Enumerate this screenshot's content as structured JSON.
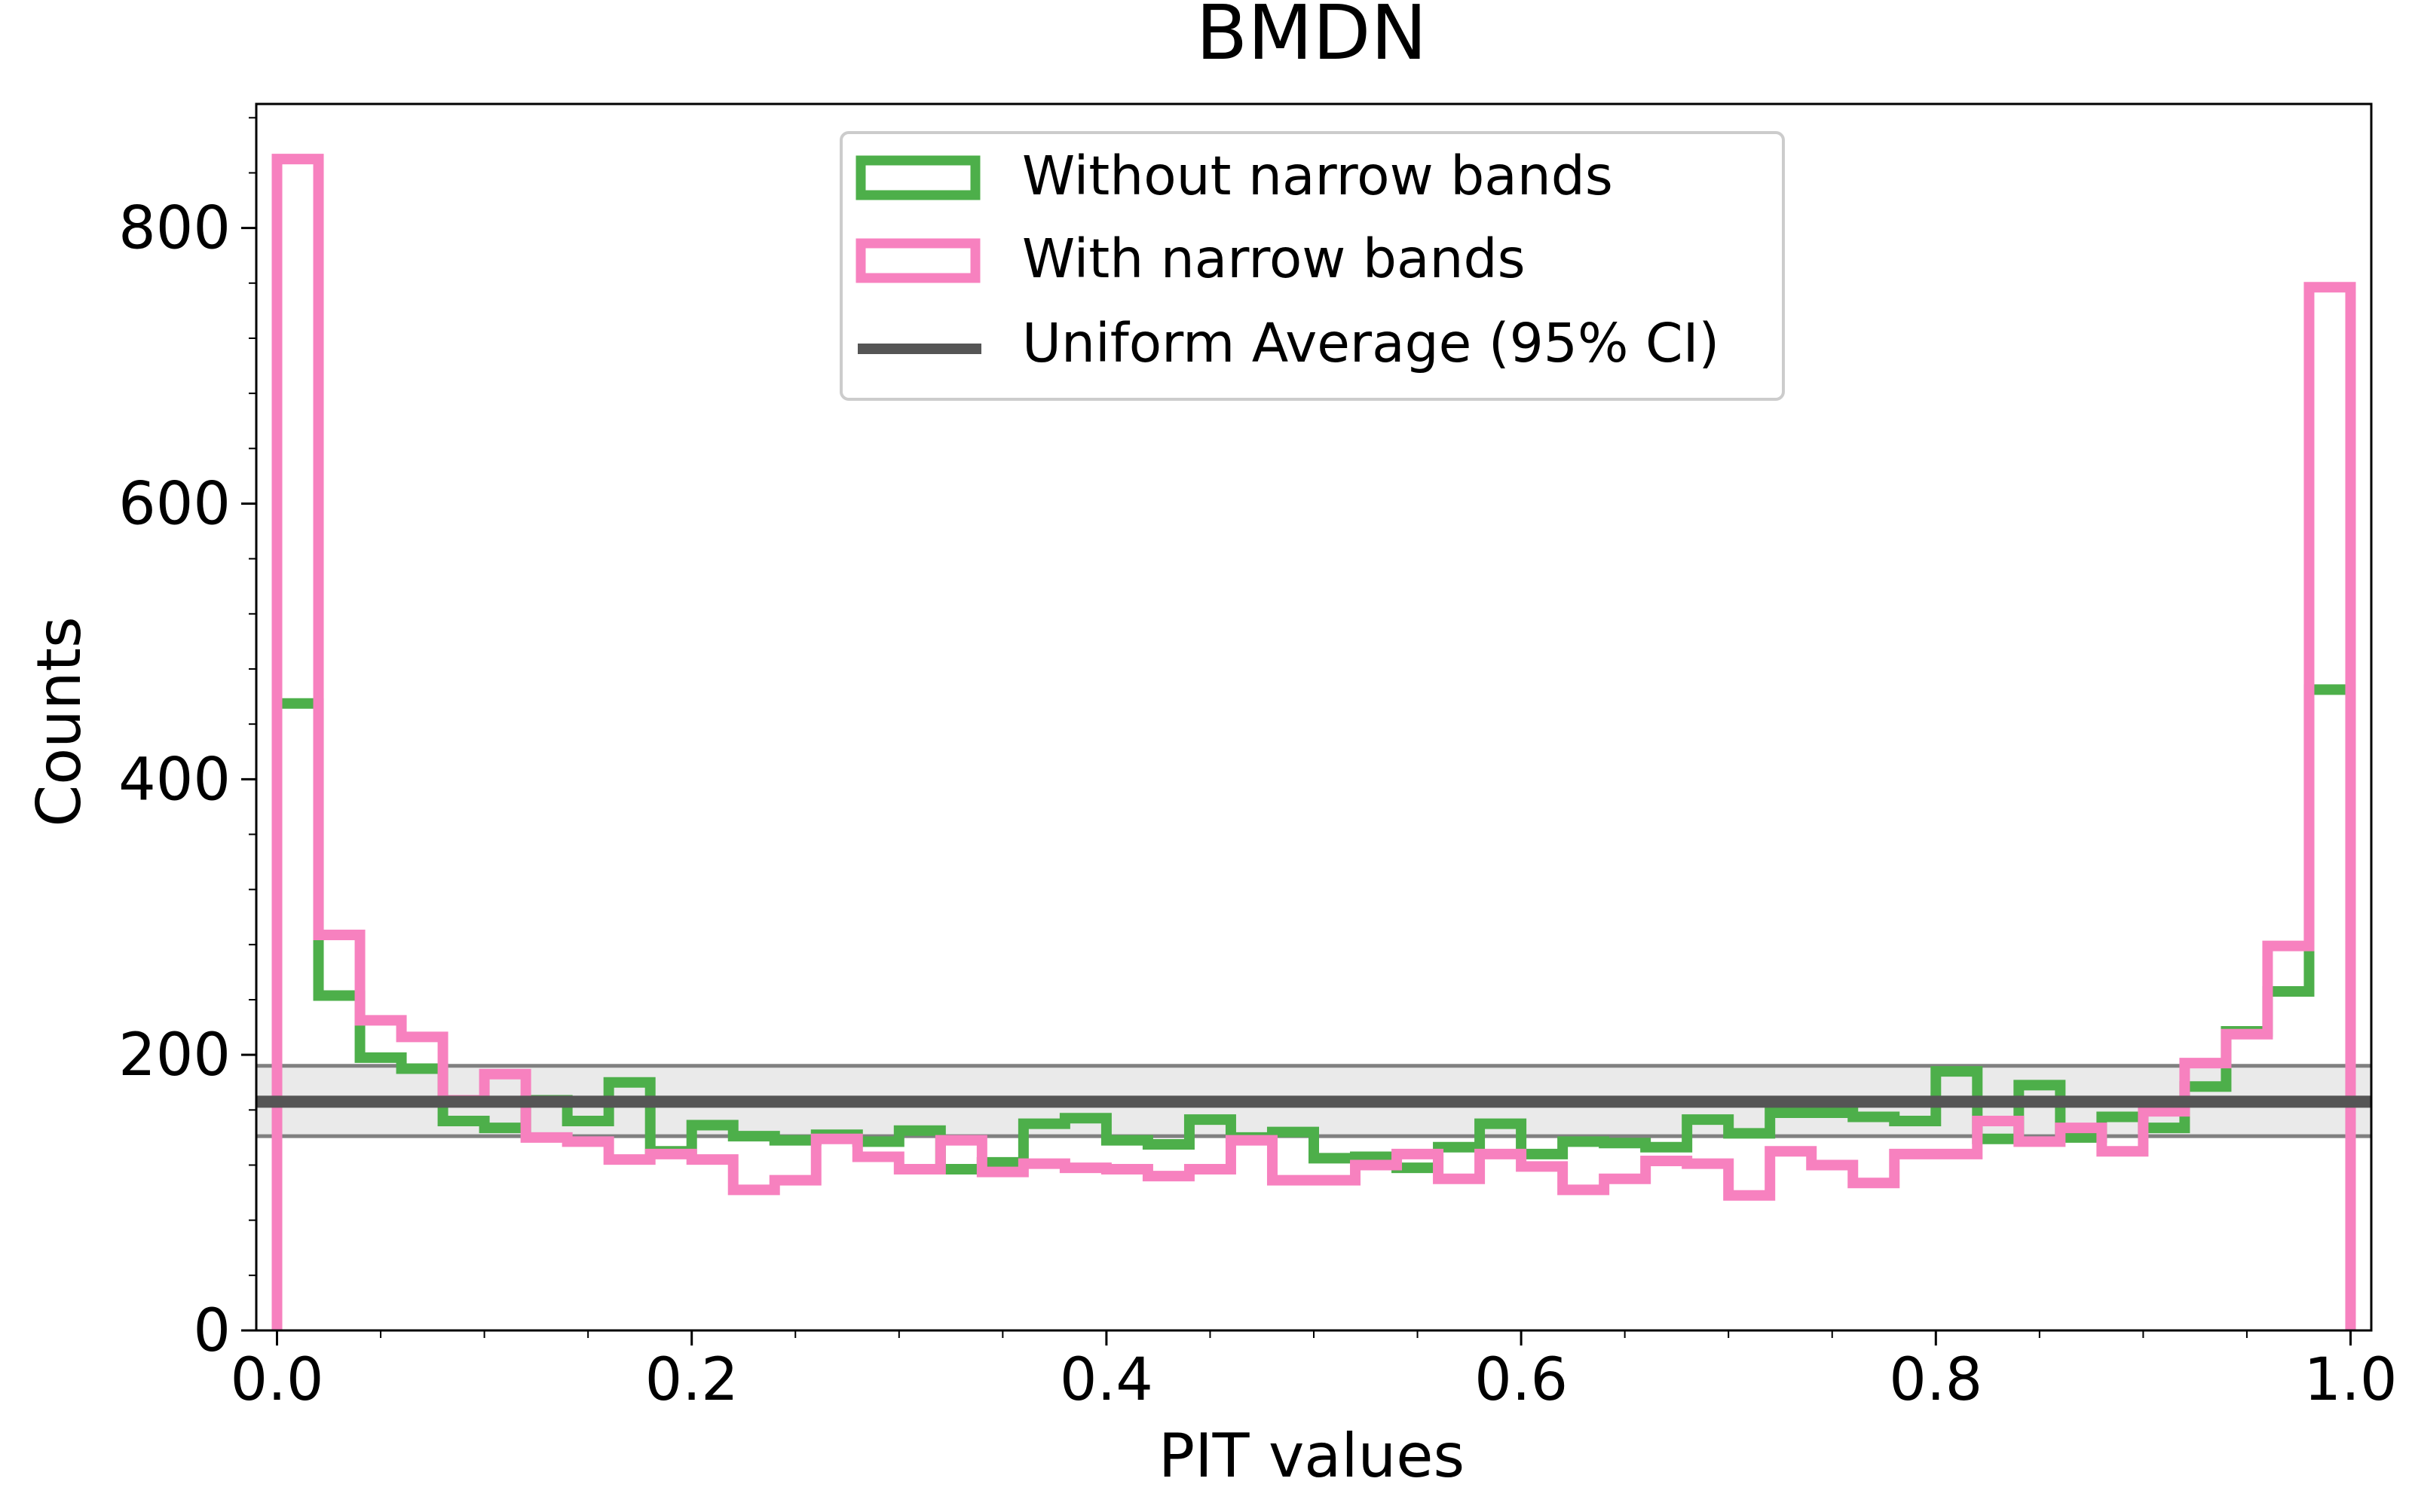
{
  "chart_data": {
    "type": "histogram",
    "title": "BMDN",
    "xlabel": "PIT values",
    "ylabel": "Counts",
    "xlim": [
      -0.01,
      1.01
    ],
    "ylim": [
      0,
      890
    ],
    "x_ticks": [
      0.0,
      0.2,
      0.4,
      0.6,
      0.8,
      1.0
    ],
    "x_tick_labels": [
      "0.0",
      "0.2",
      "0.4",
      "0.6",
      "0.8",
      "1.0"
    ],
    "y_ticks": [
      0,
      200,
      400,
      600,
      800
    ],
    "y_tick_labels": [
      "0",
      "200",
      "400",
      "600",
      "800"
    ],
    "bin_edges": [
      0.0,
      0.02,
      0.04,
      0.06,
      0.08,
      0.1,
      0.12,
      0.14,
      0.16,
      0.18,
      0.2,
      0.22,
      0.24,
      0.26,
      0.28,
      0.3,
      0.32,
      0.34,
      0.36,
      0.38,
      0.4,
      0.42,
      0.44,
      0.46,
      0.48,
      0.5,
      0.52,
      0.54,
      0.56,
      0.58,
      0.6,
      0.62,
      0.64,
      0.66,
      0.68,
      0.7,
      0.72,
      0.74,
      0.76,
      0.78,
      0.8,
      0.82,
      0.84,
      0.86,
      0.88,
      0.9,
      0.92,
      0.94,
      0.96,
      0.98,
      1.0
    ],
    "series": [
      {
        "name": "Without narrow bands",
        "color": "#4daf4a",
        "counts": [
          455,
          243,
          198,
          190,
          152,
          147,
          167,
          152,
          180,
          130,
          149,
          141,
          138,
          142,
          137,
          145,
          117,
          122,
          150,
          154,
          138,
          135,
          153,
          140,
          144,
          125,
          126,
          118,
          133,
          150,
          128,
          137,
          136,
          133,
          153,
          143,
          158,
          158,
          155,
          152,
          188,
          139,
          178,
          140,
          155,
          147,
          177,
          217,
          246,
          465
        ]
      },
      {
        "name": "With narrow bands",
        "color": "#f781bf",
        "counts": [
          850,
          287,
          225,
          213,
          167,
          186,
          140,
          137,
          124,
          128,
          124,
          102,
          109,
          139,
          126,
          117,
          138,
          115,
          121,
          118,
          117,
          112,
          117,
          138,
          109,
          109,
          120,
          128,
          110,
          128,
          119,
          102,
          110,
          123,
          121,
          98,
          130,
          120,
          107,
          128,
          128,
          152,
          137,
          147,
          130,
          159,
          194,
          215,
          279,
          757
        ]
      }
    ],
    "reference": {
      "name": "Uniform Average (95% CI)",
      "color": "#555555",
      "mean": 166,
      "ci": [
        141,
        192
      ]
    },
    "legend_position": "upper-center"
  }
}
